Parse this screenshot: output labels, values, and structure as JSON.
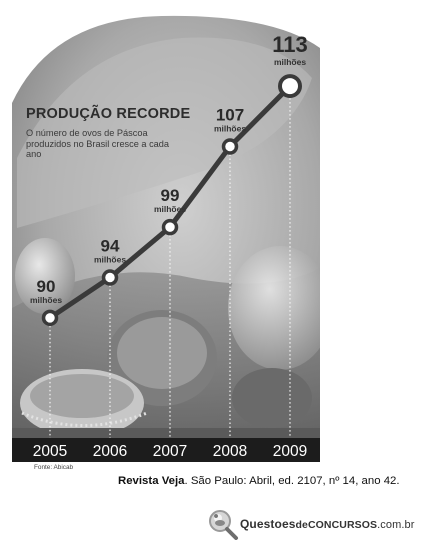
{
  "chart_data": {
    "type": "line",
    "title": "PRODUÇÃO RECORDE",
    "subtitle": "O número de ovos de Páscoa produzidos no Brasil cresce a cada ano",
    "categories": [
      "2005",
      "2006",
      "2007",
      "2008",
      "2009"
    ],
    "values": [
      90,
      94,
      99,
      107,
      113
    ],
    "value_unit": "milhões",
    "source": "Fonte: Abicab",
    "ylim": [
      88,
      114
    ],
    "grid": false,
    "colors": {
      "line": "#3a3a3a",
      "point_fill": "#ffffff",
      "axis_bar": "#1c1c1c"
    }
  },
  "caption": {
    "publication": "Revista Veja",
    "details": ". São Paulo: Abril, ed. 2107, nº 14, ano 42."
  },
  "logo": {
    "prefix": "Questoes",
    "de": "de",
    "brand": "Concursos",
    "domain": ".com.br"
  }
}
